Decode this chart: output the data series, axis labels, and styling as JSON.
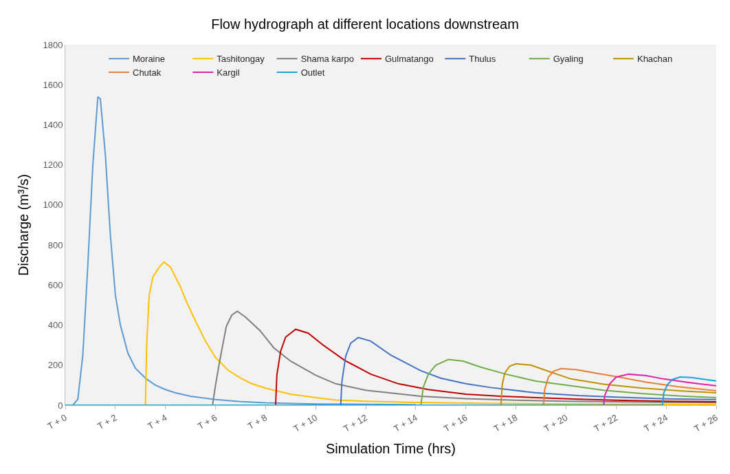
{
  "chart_data": {
    "type": "line",
    "title": "Flow hydrograph at different locations downstream",
    "xlabel": "Simulation Time (hrs)",
    "ylabel": "Discharge (m³/s)",
    "xlim": [
      0,
      26
    ],
    "xticks": [
      {
        "value": 0,
        "label": "T + 0"
      },
      {
        "value": 2,
        "label": "T + 2"
      },
      {
        "value": 4,
        "label": "T + 4"
      },
      {
        "value": 6,
        "label": "T + 6"
      },
      {
        "value": 8,
        "label": "T + 8"
      },
      {
        "value": 10,
        "label": "T + 10"
      },
      {
        "value": 12,
        "label": "T + 12"
      },
      {
        "value": 14,
        "label": "T + 14"
      },
      {
        "value": 16,
        "label": "T + 16"
      },
      {
        "value": 18,
        "label": "T + 18"
      },
      {
        "value": 20,
        "label": "T + 20"
      },
      {
        "value": 22,
        "label": "T + 22"
      },
      {
        "value": 24,
        "label": "T + 24"
      },
      {
        "value": 26,
        "label": "T + 26"
      }
    ],
    "ylim": [
      0,
      1800
    ],
    "yticks": [
      0,
      200,
      400,
      600,
      800,
      1000,
      1200,
      1400,
      1600,
      1800
    ],
    "grid": false,
    "legend": "top",
    "marker": "none",
    "line_style": "solid",
    "series": [
      {
        "name": "Moraine",
        "color": "#5b9bd5",
        "x": [
          0,
          0.3,
          0.5,
          0.7,
          0.9,
          1.1,
          1.3,
          1.4,
          1.6,
          1.8,
          2.0,
          2.2,
          2.5,
          2.8,
          3.2,
          3.6,
          4.0,
          4.4,
          5,
          6,
          7,
          8,
          10,
          14
        ],
        "values": [
          0,
          0,
          30,
          250,
          700,
          1200,
          1540,
          1530,
          1250,
          850,
          550,
          400,
          260,
          185,
          135,
          100,
          78,
          62,
          45,
          28,
          18,
          12,
          6,
          3
        ]
      },
      {
        "name": "Tashitongay",
        "color": "#ffc000",
        "x": [
          0,
          3.2,
          3.25,
          3.35,
          3.5,
          3.75,
          3.95,
          4.2,
          4.6,
          4.85,
          5.2,
          5.6,
          6.0,
          6.5,
          7.0,
          7.4,
          8,
          9,
          10,
          10.8,
          12,
          14,
          16,
          20,
          26
        ],
        "values": [
          0,
          0,
          300,
          550,
          640,
          690,
          715,
          690,
          590,
          514,
          420,
          320,
          238,
          175,
          135,
          110,
          85,
          55,
          38,
          26,
          20,
          14,
          10,
          6,
          3
        ]
      },
      {
        "name": "Shama karpo",
        "color": "#7f7f7f",
        "x": [
          0,
          5.88,
          6.0,
          6.16,
          6.43,
          6.65,
          6.87,
          7.2,
          7.78,
          8.33,
          9,
          10,
          10.8,
          12,
          14.2,
          16,
          18,
          20,
          22,
          24,
          26
        ],
        "values": [
          0,
          0,
          100,
          217,
          393,
          450,
          469,
          440,
          372,
          286,
          220,
          150,
          107,
          75,
          45,
          33,
          25,
          20,
          17,
          15,
          13
        ]
      },
      {
        "name": "Gulmatango",
        "color": "#c00000",
        "x": [
          0,
          8.4,
          8.45,
          8.6,
          8.8,
          9.2,
          9.7,
          10.3,
          11.16,
          12.2,
          13.3,
          14.5,
          16,
          17.4,
          18.8,
          20.5,
          22,
          24,
          26
        ],
        "values": [
          0,
          0,
          150,
          269,
          340,
          379,
          360,
          300,
          224,
          155,
          107,
          78,
          55,
          45,
          38,
          30,
          25,
          20,
          17
        ]
      },
      {
        "name": "Thulus",
        "color": "#4472c4",
        "x": [
          0,
          11.0,
          11.05,
          11.2,
          11.4,
          11.7,
          12.2,
          13,
          14.2,
          15,
          16,
          17,
          18.8,
          20.5,
          22,
          24,
          26
        ],
        "values": [
          0,
          0,
          120,
          245,
          310,
          338,
          320,
          250,
          172,
          135,
          107,
          88,
          62,
          48,
          40,
          32,
          28
        ]
      },
      {
        "name": "Gyaling",
        "color": "#70ad47",
        "x": [
          14.2,
          14.3,
          14.5,
          14.8,
          15.3,
          15.9,
          16.6,
          17.6,
          18.8,
          20.2,
          21.5,
          23,
          24.5,
          26
        ],
        "values": [
          0,
          90,
          155,
          200,
          228,
          220,
          190,
          155,
          120,
          97,
          75,
          58,
          46,
          38
        ]
      },
      {
        "name": "Khachan",
        "color": "#bf9000",
        "x": [
          17.4,
          17.45,
          17.55,
          17.75,
          18.0,
          18.6,
          19.4,
          20.2,
          21.5,
          23,
          24.5,
          26
        ],
        "values": [
          0,
          100,
          160,
          195,
          207,
          200,
          165,
          131,
          105,
          86,
          72,
          62
        ]
      },
      {
        "name": "Chutak",
        "color": "#ed7d31",
        "x": [
          19.1,
          19.15,
          19.3,
          19.5,
          19.8,
          20.4,
          21.2,
          22.1,
          23.2,
          24.5,
          26
        ],
        "values": [
          0,
          80,
          141,
          170,
          183,
          178,
          160,
          141,
          115,
          92,
          72
        ]
      },
      {
        "name": "Kargil",
        "color": "#e020a8",
        "x": [
          21.5,
          21.55,
          21.75,
          22.0,
          22.5,
          23.2,
          23.9,
          24.8,
          26
        ],
        "values": [
          0,
          50,
          107,
          140,
          155,
          148,
          131,
          115,
          97
        ]
      },
      {
        "name": "Outlet",
        "color": "#1aa3d8",
        "x": [
          0,
          23.86,
          23.9,
          24.05,
          24.25,
          24.55,
          25.0,
          25.5,
          26
        ],
        "values": [
          0,
          0,
          60,
          103,
          128,
          141,
          138,
          130,
          121
        ]
      }
    ]
  }
}
